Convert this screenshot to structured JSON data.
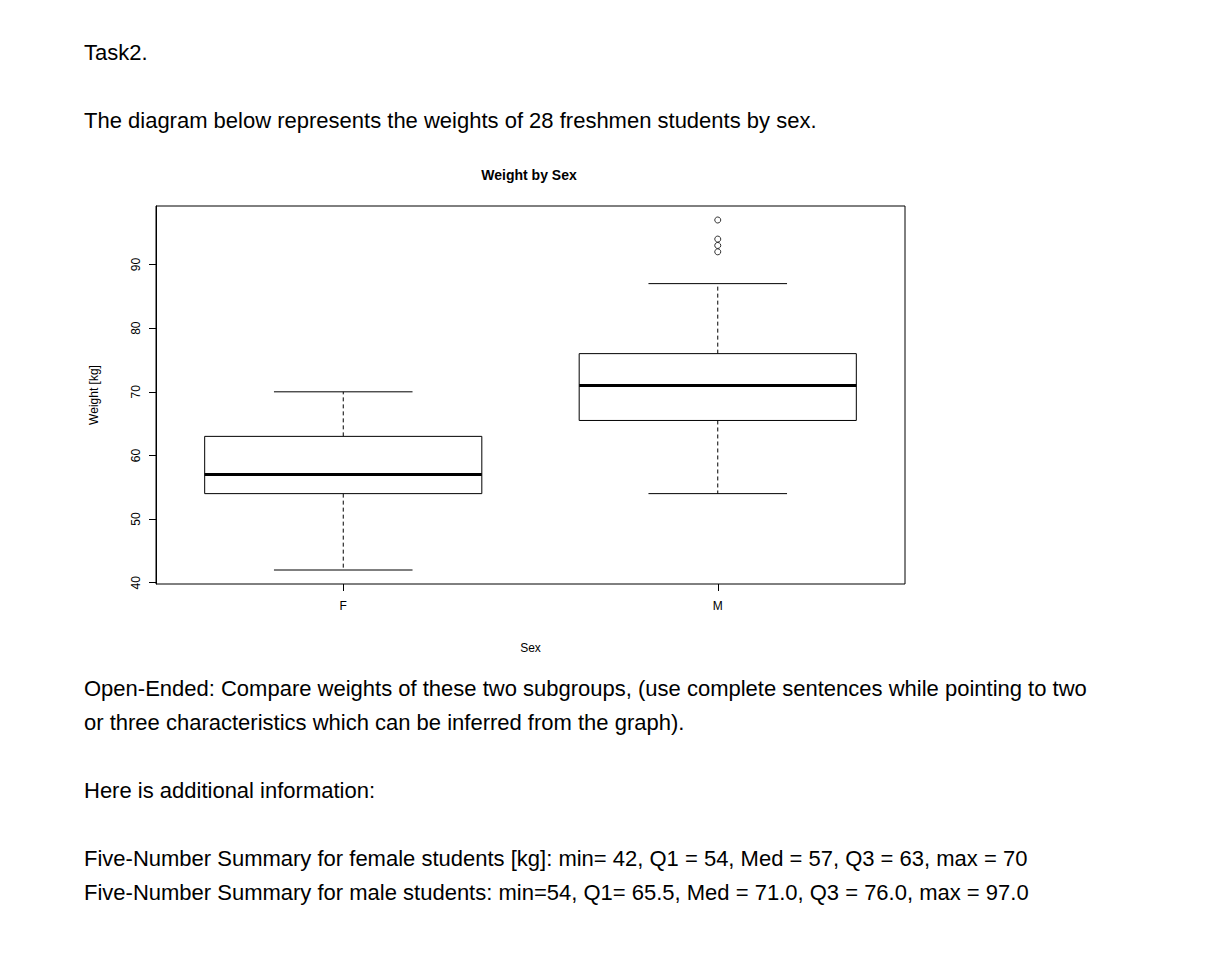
{
  "task": "Task2.",
  "intro": "The diagram below represents the weights of 28 freshmen students by sex.",
  "chart_data": {
    "type": "boxplot",
    "title": "Weight by Sex",
    "x_label": "Sex",
    "y_label": "Weight [kg]",
    "categories": [
      "F",
      "M"
    ],
    "boxes": [
      {
        "whisker_low": 42,
        "q1": 54,
        "median": 57,
        "q3": 63,
        "whisker_high": 70,
        "outliers": []
      },
      {
        "whisker_low": 54,
        "q1": 65.5,
        "median": 71,
        "q3": 76,
        "whisker_high": 87,
        "outliers": [
          92,
          93,
          94,
          97
        ]
      }
    ],
    "color": "#000000",
    "ylim": [
      39.8,
      99.2
    ],
    "yticks": [
      40,
      50,
      60,
      70,
      80,
      90
    ],
    "grid": false
  },
  "question": "Open-Ended: Compare weights of these two subgroups, (use complete sentences while pointing to two or three characteristics which can be inferred from the graph).",
  "additional": "Here is additional information:",
  "summaries": [
    "Five-Number Summary for female students [kg]: min= 42, Q1 = 54, Med = 57, Q3 = 63, max = 70",
    "Five-Number Summary for male students: min=54, Q1= 65.5, Med = 71.0, Q3 = 76.0, max = 97.0"
  ]
}
